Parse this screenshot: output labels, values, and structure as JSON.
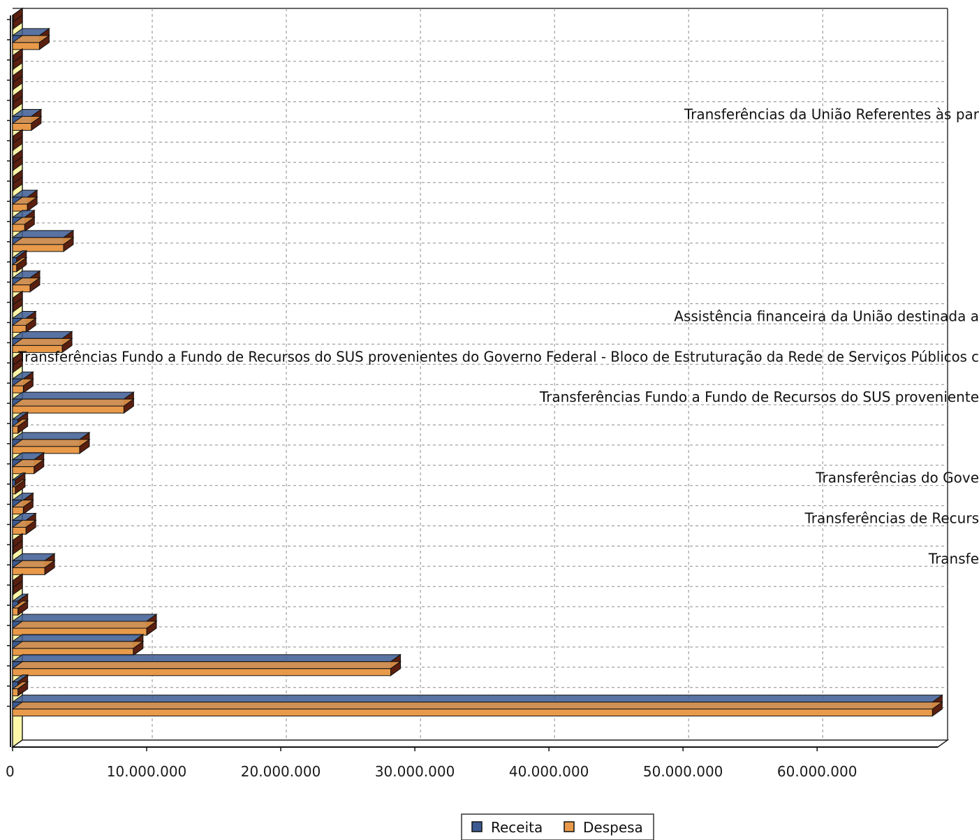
{
  "chart_data": {
    "type": "bar",
    "orientation": "horizontal",
    "grid": true,
    "legend_position": "bottom",
    "xlim": [
      0,
      69000000
    ],
    "x_ticks": [
      {
        "value": 0,
        "label": "0"
      },
      {
        "value": 10000000,
        "label": "10.000.000"
      },
      {
        "value": 20000000,
        "label": "20.000.000"
      },
      {
        "value": 30000000,
        "label": "30.000.000"
      },
      {
        "value": 40000000,
        "label": "40.000.000"
      },
      {
        "value": 50000000,
        "label": "50.000.000"
      },
      {
        "value": 60000000,
        "label": "60.000.000"
      }
    ],
    "series": [
      {
        "name": "Receita",
        "color": "#3c5a92"
      },
      {
        "name": "Despesa",
        "color": "#e89a4a"
      }
    ],
    "categories": [
      {
        "receita": 0,
        "despesa": 0,
        "label": ""
      },
      {
        "receita": 2000000,
        "despesa": 2000000,
        "label": ""
      },
      {
        "receita": 0,
        "despesa": 0,
        "label": ""
      },
      {
        "receita": 0,
        "despesa": 0,
        "label": ""
      },
      {
        "receita": 0,
        "despesa": 0,
        "label": ""
      },
      {
        "receita": 1400000,
        "despesa": 1400000,
        "label": "Transferências da União Referentes às par"
      },
      {
        "receita": 0,
        "despesa": 0,
        "label": ""
      },
      {
        "receita": 0,
        "despesa": 0,
        "label": ""
      },
      {
        "receita": 0,
        "despesa": 0,
        "label": ""
      },
      {
        "receita": 1100000,
        "despesa": 1100000,
        "label": ""
      },
      {
        "receita": 900000,
        "despesa": 900000,
        "label": ""
      },
      {
        "receita": 3800000,
        "despesa": 3800000,
        "label": ""
      },
      {
        "receita": 300000,
        "despesa": 300000,
        "label": ""
      },
      {
        "receita": 1300000,
        "despesa": 1300000,
        "label": ""
      },
      {
        "receita": 0,
        "despesa": 0,
        "label": ""
      },
      {
        "receita": 1000000,
        "despesa": 1000000,
        "label": "Assistência financeira da União destinada a"
      },
      {
        "receita": 3700000,
        "despesa": 3700000,
        "label": ""
      },
      {
        "receita": 0,
        "despesa": 0,
        "label": "Transferências Fundo a Fundo de Recursos do SUS provenientes do Governo Federal - Bloco de Estruturação da Rede de Serviços Públicos c"
      },
      {
        "receita": 800000,
        "despesa": 800000,
        "label": ""
      },
      {
        "receita": 8300000,
        "despesa": 8300000,
        "label": "Transferências Fundo a Fundo de Recursos do SUS proveniente"
      },
      {
        "receita": 400000,
        "despesa": 400000,
        "label": ""
      },
      {
        "receita": 5000000,
        "despesa": 5000000,
        "label": ""
      },
      {
        "receita": 1600000,
        "despesa": 1600000,
        "label": ""
      },
      {
        "receita": 200000,
        "despesa": 200000,
        "label": "Transferências do Gove"
      },
      {
        "receita": 800000,
        "despesa": 800000,
        "label": ""
      },
      {
        "receita": 1000000,
        "despesa": 1000000,
        "label": "Transferências de Recurs"
      },
      {
        "receita": 0,
        "despesa": 0,
        "label": ""
      },
      {
        "receita": 2400000,
        "despesa": 2400000,
        "label": "Transfe"
      },
      {
        "receita": 0,
        "despesa": 0,
        "label": ""
      },
      {
        "receita": 400000,
        "despesa": 400000,
        "label": ""
      },
      {
        "receita": 10000000,
        "despesa": 10000000,
        "label": ""
      },
      {
        "receita": 9000000,
        "despesa": 9000000,
        "label": ""
      },
      {
        "receita": 28200000,
        "despesa": 28200000,
        "label": ""
      },
      {
        "receita": 400000,
        "despesa": 400000,
        "label": ""
      },
      {
        "receita": 68600000,
        "despesa": 68600000,
        "label": ""
      }
    ]
  }
}
